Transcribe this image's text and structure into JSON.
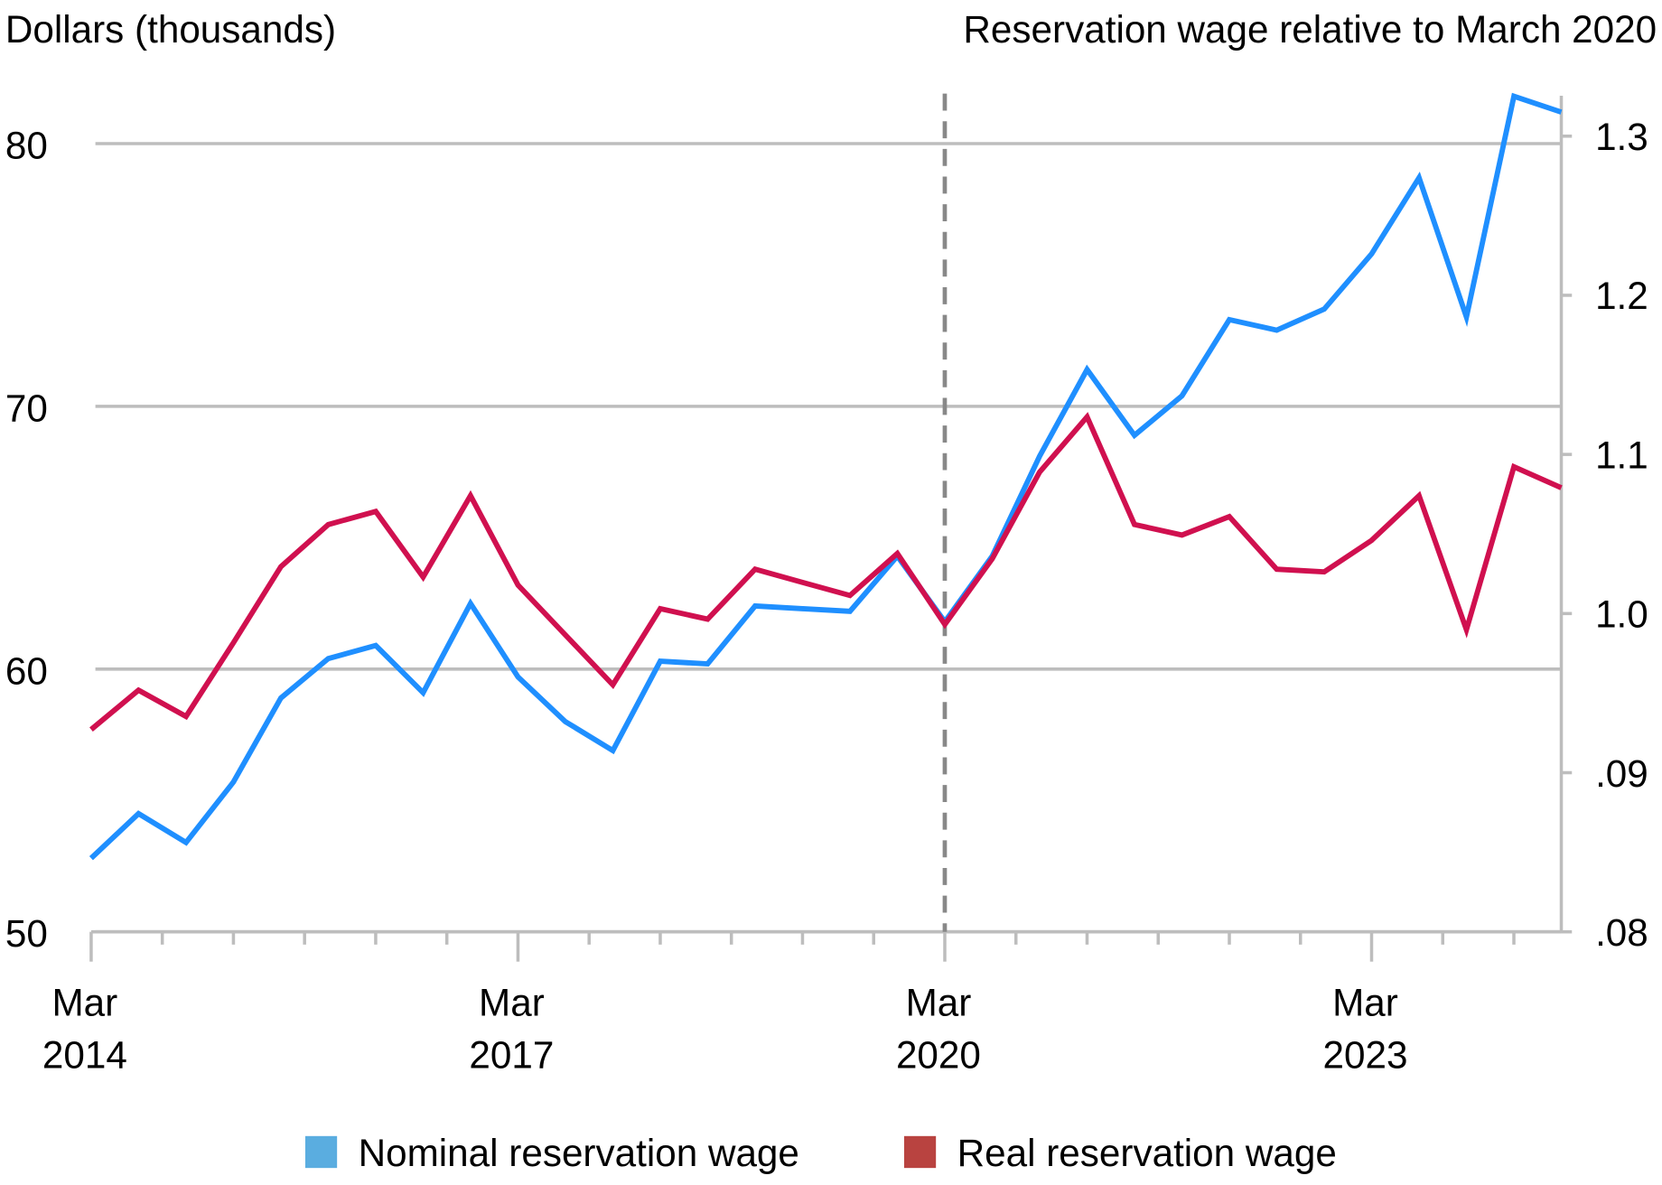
{
  "chart_data": {
    "type": "line",
    "left_axis": {
      "label": "Dollars (thousands)",
      "ylim": [
        50,
        80
      ],
      "ticks": [
        "80",
        "70",
        "60",
        "50"
      ],
      "tick_values": [
        80,
        70,
        60,
        50
      ]
    },
    "right_axis": {
      "label": "Reservation wage relative to March 2020",
      "ticks": [
        "1.3",
        "1.2",
        "1.1",
        "1.0",
        ".09",
        ".08"
      ]
    },
    "x_ticks": [
      {
        "month": "Mar",
        "year": "2014",
        "index": 0
      },
      {
        "month": "Mar",
        "year": "2017",
        "index": 9
      },
      {
        "month": "Mar",
        "year": "2020",
        "index": 18
      },
      {
        "month": "Mar",
        "year": "2023",
        "index": 27
      }
    ],
    "reference_line": {
      "at": "Mar 2020",
      "style": "dashed"
    },
    "grid": true,
    "legend_placement": "bottom",
    "categories": [
      "Mar 2014",
      "Jul 2014",
      "Nov 2014",
      "Mar 2015",
      "Jul 2015",
      "Nov 2015",
      "Mar 2016",
      "Jul 2016",
      "Nov 2016",
      "Mar 2017",
      "Jul 2017",
      "Nov 2017",
      "Mar 2018",
      "Jul 2018",
      "Nov 2018",
      "Mar 2019",
      "Jul 2019",
      "Nov 2019",
      "Mar 2020",
      "Jul 2020",
      "Nov 2020",
      "Mar 2021",
      "Jul 2021",
      "Nov 2021",
      "Mar 2022",
      "Jul 2022",
      "Nov 2022",
      "Mar 2023",
      "Jul 2023",
      "Nov 2023",
      "Mar 2024",
      "Jul 2024"
    ],
    "series": [
      {
        "name": "Nominal reservation wage",
        "color": "#1f8fff",
        "legend_color": "#5aade0",
        "values": [
          52.8,
          54.5,
          53.4,
          55.7,
          58.9,
          60.4,
          60.9,
          59.1,
          62.5,
          59.7,
          58.0,
          56.9,
          60.3,
          60.2,
          62.4,
          62.3,
          62.2,
          64.3,
          61.8,
          64.3,
          68.1,
          71.4,
          68.9,
          70.4,
          73.3,
          72.9,
          73.7,
          75.8,
          78.7,
          73.4,
          81.8,
          81.2
        ]
      },
      {
        "name": "Real reservation wage",
        "color": "#d0104f",
        "legend_color": "#b94340",
        "values": [
          57.7,
          59.2,
          58.2,
          61.0,
          63.9,
          65.5,
          66.0,
          63.5,
          66.6,
          63.2,
          61.3,
          59.4,
          62.3,
          61.9,
          63.8,
          63.3,
          62.8,
          64.4,
          61.7,
          64.2,
          67.5,
          69.6,
          65.5,
          65.1,
          65.8,
          63.8,
          63.7,
          64.9,
          66.6,
          61.5,
          67.7,
          66.9
        ]
      }
    ]
  }
}
